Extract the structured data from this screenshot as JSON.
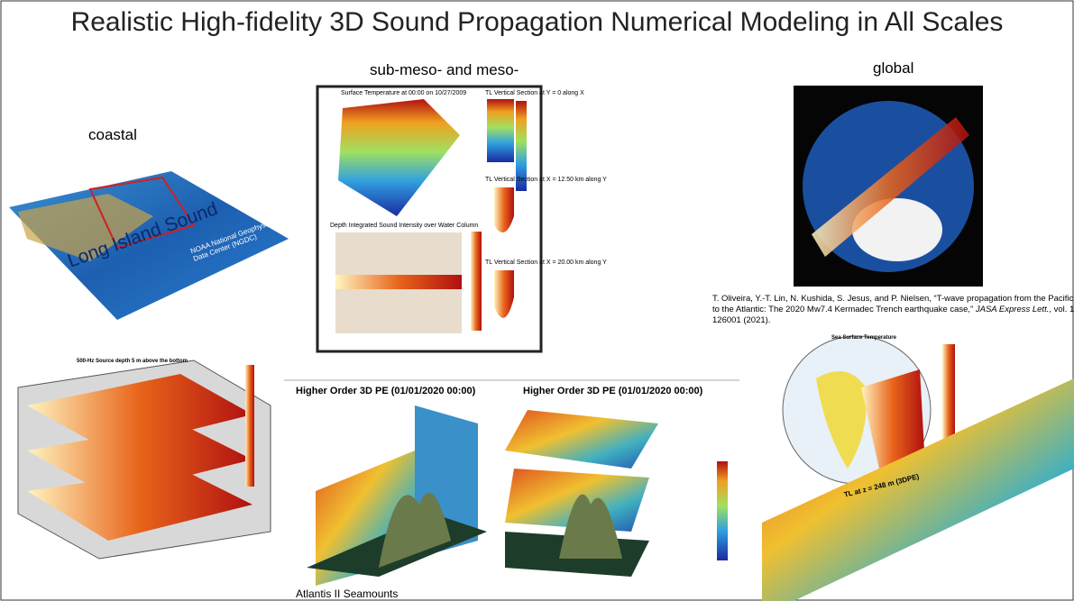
{
  "title": "Realistic High-fidelity 3D Sound Propagation Numerical Modeling in All Scales",
  "sections": {
    "coastal": "coastal",
    "meso": "sub-meso- and meso-",
    "global": "global"
  },
  "coastal_figure": {
    "label": "Long Island Sound",
    "credit": "NOAA National Geophysical Data Center (NGDC)"
  },
  "meso_figure": {
    "panels": [
      "Surface Temperature at 00:00 on 10/27/2009",
      "TL Vertical Section at Y = 0 along X",
      "TL Vertical Section at X = 12.50 km along Y",
      "Depth Integrated Sound Intensity over Water Column",
      "TL Vertical Section at X = 20.00 km along Y"
    ]
  },
  "citation": {
    "text": "T. Oliveira, Y.-T. Lin, N. Kushida, S. Jesus, and P. Nielsen, “T-wave propagation from the Pacific to the Atlantic: The 2020 Mw7.4 Kermadec Trench earthquake case,” ",
    "journal": "JASA Express Lett.",
    "rest": ", vol. 1, 126001 (2021)."
  },
  "bottom_left_figure": {
    "title": "500-Hz Source depth 5 m above the bottom"
  },
  "seamount_figure": {
    "panels": [
      "Higher Order 3D PE (01/01/2020 00:00)",
      "Higher Order 3D PE (01/01/2020 00:00)"
    ],
    "caption": "Atlantis II Seamounts"
  },
  "bottom_right_figure": {
    "title": "Sea Surface Temperature",
    "label": "TL at z = 248 m (3DPE)"
  }
}
